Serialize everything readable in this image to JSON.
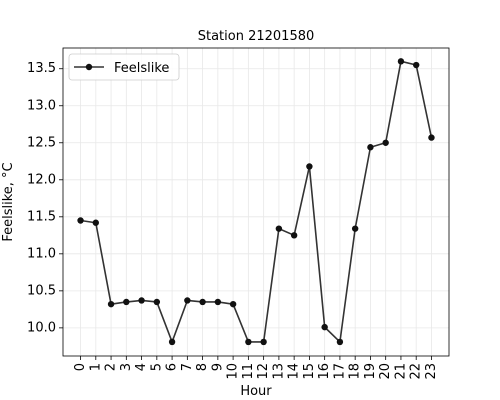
{
  "chart_data": {
    "type": "line",
    "title": "Station 21201580",
    "xlabel": "Hour",
    "ylabel": "Feelslike, °C",
    "x": [
      0,
      1,
      2,
      3,
      4,
      5,
      6,
      7,
      8,
      9,
      10,
      11,
      12,
      13,
      14,
      15,
      16,
      17,
      18,
      19,
      20,
      21,
      22,
      23
    ],
    "xticks": [
      "0",
      "1",
      "2",
      "3",
      "4",
      "5",
      "6",
      "7",
      "8",
      "9",
      "10",
      "11",
      "12",
      "13",
      "14",
      "15",
      "16",
      "17",
      "18",
      "19",
      "20",
      "21",
      "22",
      "23"
    ],
    "yticks": [
      "10.0",
      "10.5",
      "11.0",
      "11.5",
      "12.0",
      "12.5",
      "13.0",
      "13.5"
    ],
    "ylim": [
      9.62,
      13.78
    ],
    "xlim": [
      -1.15,
      24.15
    ],
    "grid": true,
    "legend_position": "top-left",
    "series": [
      {
        "name": "Feelslike",
        "color": "#000000",
        "values": [
          11.45,
          11.42,
          10.32,
          10.35,
          10.37,
          10.35,
          9.81,
          10.37,
          10.35,
          10.35,
          10.32,
          9.81,
          9.81,
          11.34,
          11.25,
          12.18,
          10.01,
          9.81,
          11.34,
          12.44,
          12.5,
          13.6,
          13.55,
          12.57
        ]
      }
    ]
  }
}
